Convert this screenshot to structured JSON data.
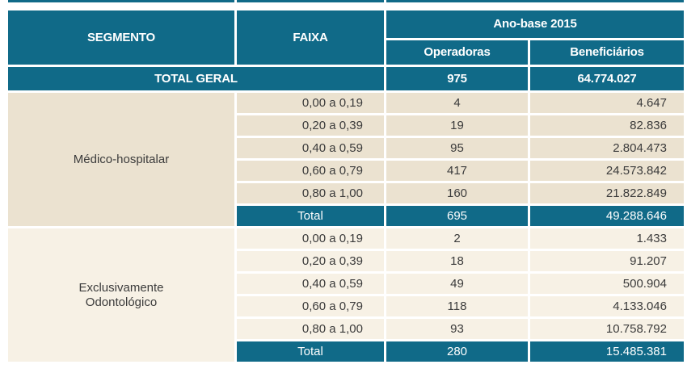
{
  "colors": {
    "teal": "#106a88",
    "beige_dark": "#ebe2d0",
    "beige_light": "#f7f1e5",
    "text": "#3b3b3b"
  },
  "header": {
    "segmento": "SEGMENTO",
    "faixa": "FAIXA",
    "ano_base": "Ano-base 2015",
    "operadoras": "Operadoras",
    "beneficiarios": "Beneficiários"
  },
  "total_geral": {
    "label": "TOTAL GERAL",
    "operadoras": "975",
    "beneficiarios": "64.774.027"
  },
  "sections": [
    {
      "segmento": "Médico-hospitalar",
      "rows": [
        {
          "faixa": "0,00 a 0,19",
          "operadoras": "4",
          "beneficiarios": "4.647"
        },
        {
          "faixa": "0,20 a 0,39",
          "operadoras": "19",
          "beneficiarios": "82.836"
        },
        {
          "faixa": "0,40 a 0,59",
          "operadoras": "95",
          "beneficiarios": "2.804.473"
        },
        {
          "faixa": "0,60 a 0,79",
          "operadoras": "417",
          "beneficiarios": "24.573.842"
        },
        {
          "faixa": "0,80 a 1,00",
          "operadoras": "160",
          "beneficiarios": "21.822.849"
        }
      ],
      "total": {
        "label": "Total",
        "operadoras": "695",
        "beneficiarios": "49.288.646"
      }
    },
    {
      "segmento": "Exclusivamente\nOdontológico",
      "rows": [
        {
          "faixa": "0,00 a 0,19",
          "operadoras": "2",
          "beneficiarios": "1.433"
        },
        {
          "faixa": "0,20 a 0,39",
          "operadoras": "18",
          "beneficiarios": "91.207"
        },
        {
          "faixa": "0,40 a 0,59",
          "operadoras": "49",
          "beneficiarios": "500.904"
        },
        {
          "faixa": "0,60 a 0,79",
          "operadoras": "118",
          "beneficiarios": "4.133.046"
        },
        {
          "faixa": "0,80 a 1,00",
          "operadoras": "93",
          "beneficiarios": "10.758.792"
        }
      ],
      "total": {
        "label": "Total",
        "operadoras": "280",
        "beneficiarios": "15.485.381"
      }
    }
  ]
}
